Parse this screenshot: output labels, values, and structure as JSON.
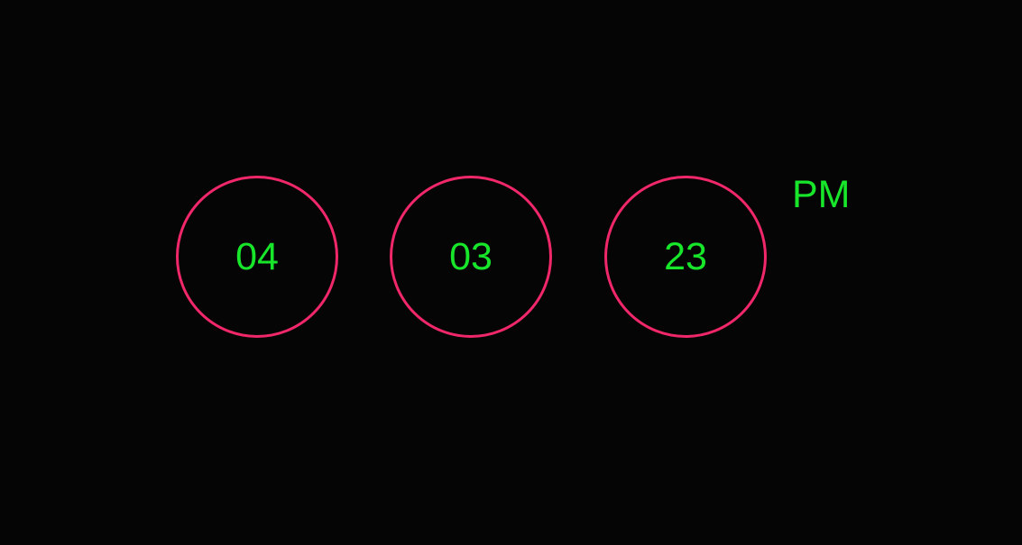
{
  "clock": {
    "hours": "04",
    "minutes": "03",
    "seconds": "23",
    "meridiem": "PM"
  },
  "colors": {
    "background": "#050505",
    "ring": "#f0286a",
    "digits": "#18e62a"
  }
}
